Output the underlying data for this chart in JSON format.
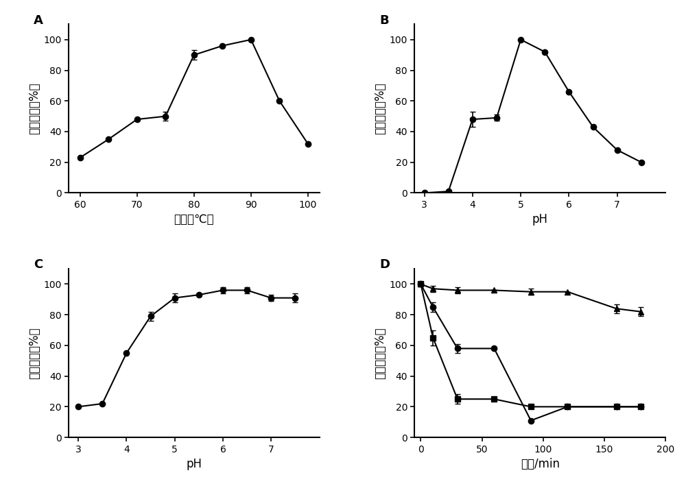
{
  "panel_A": {
    "x": [
      60,
      65,
      70,
      75,
      80,
      85,
      90,
      95,
      100
    ],
    "y": [
      23,
      35,
      48,
      50,
      90,
      96,
      100,
      60,
      32
    ],
    "yerr": [
      0,
      0,
      0,
      3,
      3,
      0,
      0,
      0,
      0
    ],
    "xlabel": "温度（℃）",
    "ylabel": "相关活性（%）",
    "xlim": [
      58,
      102
    ],
    "ylim": [
      0,
      110
    ],
    "xticks": [
      60,
      70,
      80,
      90,
      100
    ],
    "yticks": [
      0,
      20,
      40,
      60,
      80,
      100
    ],
    "label": "A"
  },
  "panel_B": {
    "x": [
      3,
      3.5,
      4,
      4.5,
      5,
      5.5,
      6,
      6.5,
      7,
      7.5
    ],
    "y": [
      0,
      1,
      48,
      49,
      100,
      92,
      66,
      43,
      28,
      20
    ],
    "yerr": [
      0,
      0,
      5,
      2,
      0,
      0,
      0,
      0,
      0,
      0
    ],
    "xlabel": "pH",
    "ylabel": "相关活性（%）",
    "xlim": [
      2.8,
      8
    ],
    "ylim": [
      0,
      110
    ],
    "xticks": [
      3,
      4,
      5,
      6,
      7
    ],
    "yticks": [
      0,
      20,
      40,
      60,
      80,
      100
    ],
    "label": "B"
  },
  "panel_C": {
    "x": [
      3,
      3.5,
      4,
      4.5,
      5,
      5.5,
      6,
      6.5,
      7,
      7.5
    ],
    "y": [
      20,
      22,
      55,
      79,
      91,
      93,
      96,
      96,
      91,
      91
    ],
    "yerr": [
      0,
      0,
      0,
      3,
      3,
      0,
      2,
      2,
      2,
      3
    ],
    "xlabel": "pH",
    "ylabel": "相关活性（%）",
    "xlim": [
      2.8,
      8
    ],
    "ylim": [
      0,
      110
    ],
    "xticks": [
      3,
      4,
      5,
      6,
      7
    ],
    "yticks": [
      0,
      20,
      40,
      60,
      80,
      100
    ],
    "label": "C"
  },
  "panel_D": {
    "x": [
      0,
      10,
      30,
      60,
      90,
      120,
      160,
      180
    ],
    "y_circle": [
      100,
      85,
      58,
      58,
      11,
      20,
      20,
      20
    ],
    "y_square": [
      100,
      65,
      25,
      25,
      20,
      20,
      20,
      20
    ],
    "y_triangle": [
      100,
      97,
      96,
      96,
      95,
      95,
      84,
      82
    ],
    "yerr_circle": [
      0,
      3,
      3,
      0,
      0,
      0,
      0,
      0
    ],
    "yerr_square": [
      0,
      5,
      3,
      0,
      0,
      0,
      0,
      0
    ],
    "yerr_triangle": [
      0,
      2,
      2,
      0,
      2,
      0,
      3,
      3
    ],
    "xlabel": "时间/min",
    "ylabel": "相关活性（%）",
    "xlim": [
      -5,
      200
    ],
    "ylim": [
      0,
      110
    ],
    "xticks": [
      0,
      50,
      100,
      150,
      200
    ],
    "yticks": [
      0,
      20,
      40,
      60,
      80,
      100
    ],
    "label": "D"
  },
  "line_color": "#000000",
  "marker_color": "#000000",
  "bg_color": "#ffffff",
  "linewidth": 1.5,
  "markersize": 6,
  "ylabel_fontsize": 12,
  "xlabel_fontsize": 12,
  "tick_fontsize": 10,
  "label_fontsize": 13
}
